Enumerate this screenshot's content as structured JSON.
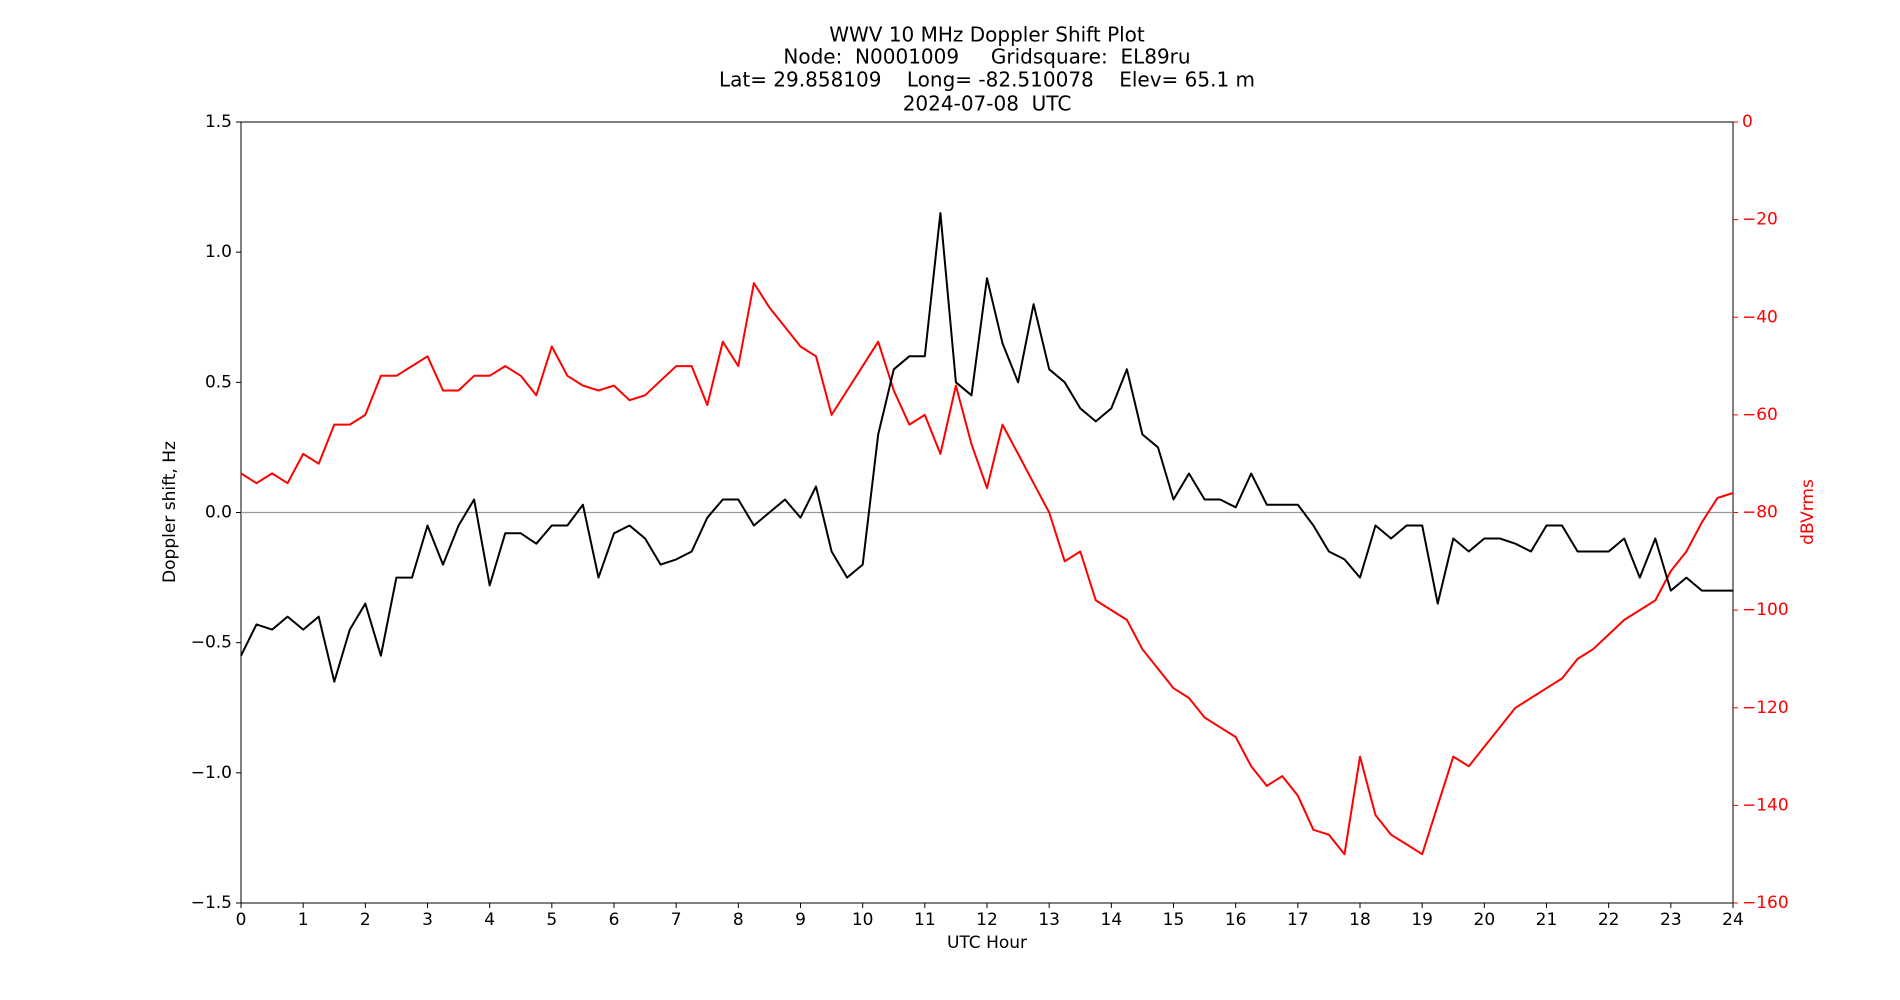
{
  "chart_data": {
    "type": "line",
    "title": [
      "WWV 10 MHz Doppler Shift Plot",
      "Node:  N0001009     Gridsquare:  EL89ru",
      "Lat= 29.858109    Long= -82.510078    Elev= 65.1 m",
      "2024-07-08  UTC"
    ],
    "x_label": "UTC Hour",
    "y_label": "Doppler shift, Hz",
    "y2_label": "dBVrms",
    "y2_color": "#ff0000",
    "xlim": [
      0,
      24
    ],
    "xticks": [
      0,
      1,
      2,
      3,
      4,
      5,
      6,
      7,
      8,
      9,
      10,
      11,
      12,
      13,
      14,
      15,
      16,
      17,
      18,
      19,
      20,
      21,
      22,
      23,
      24
    ],
    "ylim": [
      -1.5,
      1.5
    ],
    "yticks": [
      {
        "value": -1.5,
        "label": "−1.5"
      },
      {
        "value": -1.0,
        "label": "−1.0"
      },
      {
        "value": -0.5,
        "label": "−0.5"
      },
      {
        "value": 0,
        "label": "0.0"
      },
      {
        "value": 0.5,
        "label": "0.5"
      },
      {
        "value": 1.0,
        "label": "1.0"
      },
      {
        "value": 1.5,
        "label": "1.5"
      }
    ],
    "y2lim": [
      -160,
      0
    ],
    "y2ticks": [
      {
        "value": -160,
        "label": "−160"
      },
      {
        "value": -140,
        "label": "−140"
      },
      {
        "value": -120,
        "label": "−120"
      },
      {
        "value": -100,
        "label": "−100"
      },
      {
        "value": -80,
        "label": "−80"
      },
      {
        "value": -60,
        "label": "−60"
      },
      {
        "value": -40,
        "label": "−40"
      },
      {
        "value": -20,
        "label": "−20"
      },
      0
    ],
    "reference_line": 0,
    "reference_color": "#999999",
    "x": [
      0,
      0.25,
      0.5,
      0.75,
      1,
      1.25,
      1.5,
      1.75,
      2,
      2.25,
      2.5,
      2.75,
      3,
      3.25,
      3.5,
      3.75,
      4,
      4.25,
      4.5,
      4.75,
      5,
      5.25,
      5.5,
      5.75,
      6,
      6.25,
      6.5,
      6.75,
      7,
      7.25,
      7.5,
      7.75,
      8,
      8.25,
      8.5,
      8.75,
      9,
      9.25,
      9.5,
      9.75,
      10,
      10.25,
      10.5,
      10.75,
      11,
      11.25,
      11.5,
      11.75,
      12,
      12.25,
      12.5,
      12.75,
      13,
      13.25,
      13.5,
      13.75,
      14,
      14.25,
      14.5,
      14.75,
      15,
      15.25,
      15.5,
      15.75,
      16,
      16.25,
      16.5,
      16.75,
      17,
      17.25,
      17.5,
      17.75,
      18,
      18.25,
      18.5,
      18.75,
      19,
      19.25,
      19.5,
      19.75,
      20,
      20.25,
      20.5,
      20.75,
      21,
      21.25,
      21.5,
      21.75,
      22,
      22.25,
      22.5,
      22.75,
      23,
      23.25,
      23.5,
      23.75,
      24
    ],
    "series": [
      {
        "name": "Doppler shift",
        "color": "#000000",
        "values": [
          -0.55,
          -0.43,
          -0.45,
          -0.4,
          -0.45,
          -0.4,
          -0.65,
          -0.45,
          -0.35,
          -0.55,
          -0.25,
          -0.25,
          -0.05,
          -0.2,
          -0.05,
          0.05,
          -0.28,
          -0.08,
          -0.08,
          -0.12,
          -0.05,
          -0.05,
          0.03,
          -0.25,
          -0.08,
          -0.05,
          -0.1,
          -0.2,
          -0.18,
          -0.15,
          -0.02,
          0.05,
          0.05,
          -0.05,
          0,
          0.05,
          -0.02,
          0.1,
          -0.15,
          -0.25,
          -0.2,
          0.3,
          0.55,
          0.6,
          0.6,
          1.15,
          0.5,
          0.45,
          0.9,
          0.65,
          0.5,
          0.8,
          0.55,
          0.5,
          0.4,
          0.35,
          0.4,
          0.55,
          0.3,
          0.25,
          0.05,
          0.15,
          0.05,
          0.05,
          0.02,
          0.15,
          0.03,
          0.03,
          0.03,
          -0.05,
          -0.15,
          -0.18,
          -0.25,
          -0.05,
          -0.1,
          -0.05,
          -0.05,
          -0.35,
          -0.1,
          -0.15,
          -0.1,
          -0.1,
          -0.12,
          -0.15,
          -0.05,
          -0.05,
          -0.15,
          -0.15,
          -0.15,
          -0.1,
          -0.25,
          -0.1,
          -0.3,
          -0.25,
          -0.3,
          -0.3,
          -0.3
        ]
      },
      {
        "name": "dBVrms",
        "color": "#ff0000",
        "axis": "y2",
        "values": [
          -72,
          -74,
          -72,
          -74,
          -68,
          -70,
          -62,
          -62,
          -60,
          -52,
          -52,
          -50,
          -48,
          -55,
          -55,
          -52,
          -52,
          -50,
          -52,
          -56,
          -46,
          -52,
          -54,
          -55,
          -54,
          -57,
          -56,
          -53,
          -50,
          -50,
          -58,
          -45,
          -50,
          -33,
          -38,
          -42,
          -46,
          -48,
          -60,
          -55,
          -50,
          -45,
          -55,
          -62,
          -60,
          -68,
          -54,
          -66,
          -75,
          -62,
          -68,
          -74,
          -80,
          -90,
          -88,
          -98,
          -100,
          -102,
          -108,
          -112,
          -116,
          -118,
          -122,
          -124,
          -126,
          -132,
          -136,
          -134,
          -138,
          -145,
          -146,
          -150,
          -130,
          -142,
          -146,
          -148,
          -150,
          -140,
          -130,
          -132,
          -128,
          -124,
          -120,
          -118,
          -116,
          -114,
          -110,
          -108,
          -105,
          -102,
          -100,
          -98,
          -92,
          -88,
          -82,
          -77,
          -76
        ]
      }
    ]
  }
}
